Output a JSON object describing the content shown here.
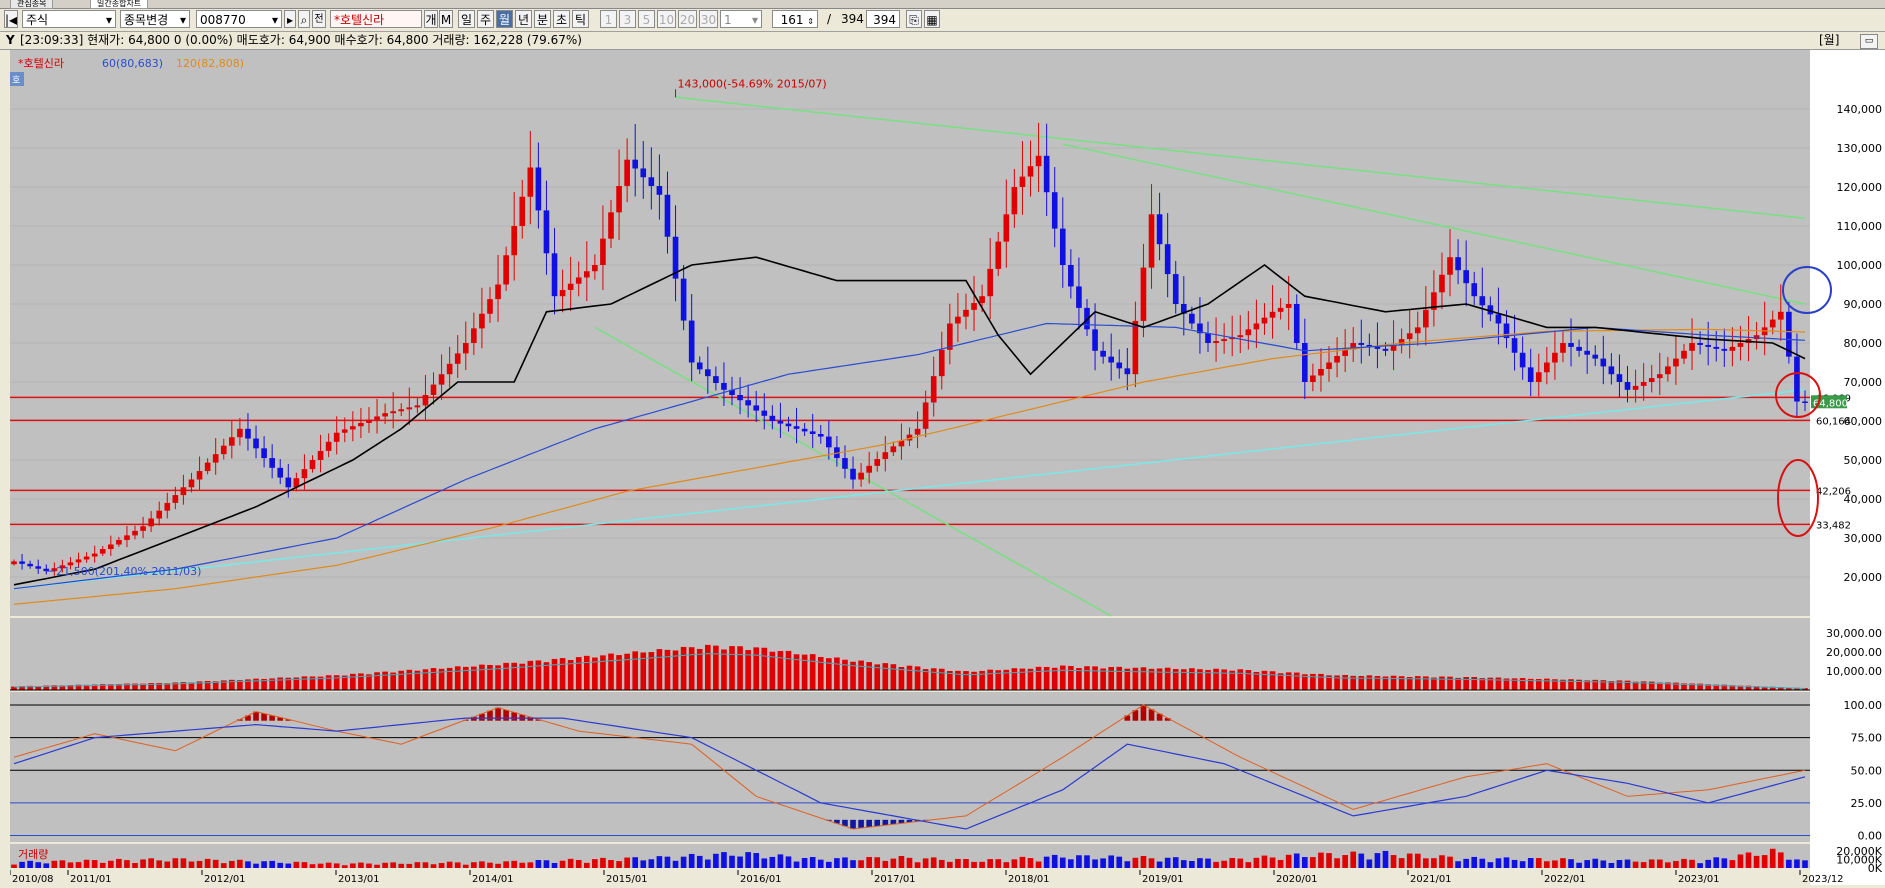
{
  "tabs": [
    "관심종목",
    "일간종합차트"
  ],
  "toolbar": {
    "market": "주식",
    "change_label": "종목변경",
    "code": "008770",
    "name": "*호텔신라",
    "periods": [
      "일",
      "주",
      "월",
      "년",
      "분",
      "초",
      "틱"
    ],
    "active_period": "월",
    "multipliers": [
      "1",
      "3",
      "5",
      "10",
      "20",
      "30"
    ],
    "count_value": "161",
    "total": "394",
    "total2": "394",
    "ge_label": "개",
    "m_label": "M",
    "jeon_label": "전",
    "slash": "/"
  },
  "infobar": {
    "icon": "Y",
    "time": "[23:09:33]",
    "price_label": "현재가",
    "price": "64,800",
    "change": "0 (0.00%)",
    "ask_label": "매도호가",
    "ask": "64,900",
    "bid_label": "매수호가",
    "bid": "64,800",
    "volume_label": "거래량",
    "volume": "162,228 (79.67%)",
    "period_tag": "[월]"
  },
  "legend": {
    "name": "*호텔신라",
    "ma60": "60(80,683)",
    "ma120": "120(82,808)"
  },
  "panel_tag": "호",
  "annotations": {
    "high": "143,000(-54.69% 2015/07)",
    "low": "21,500(201.40% 2011/03)"
  },
  "level_labels": [
    "66,069",
    "60,164",
    "42,206",
    "33,482"
  ],
  "level_values": [
    66069,
    60164,
    42206,
    33482
  ],
  "price_tag": "64,800",
  "volume_label": "거래량",
  "chart_data": {
    "type": "candlestick",
    "x_ticks": [
      "2010/08",
      "2011/01",
      "2012/01",
      "2013/01",
      "2014/01",
      "2015/01",
      "2016/01",
      "2017/01",
      "2018/01",
      "2019/01",
      "2020/01",
      "2021/01",
      "2022/01",
      "2023/01",
      "2023/12"
    ],
    "price_axis": {
      "ylim": [
        10000,
        150000
      ],
      "ticks": [
        20000,
        30000,
        40000,
        50000,
        60000,
        70000,
        80000,
        90000,
        100000,
        110000,
        120000,
        130000,
        140000
      ],
      "labels": [
        "20,000",
        "30,000",
        "40,000",
        "50,000",
        "60,000",
        "70,000",
        "80,000",
        "90,000",
        "100,000",
        "110,000",
        "120,000",
        "130,000",
        "140,000"
      ]
    },
    "indicator1_axis": {
      "labels": [
        "10,000.00",
        "20,000.00",
        "30,000.00"
      ],
      "ticks": [
        10000,
        20000,
        30000
      ],
      "ylim": [
        0,
        38000
      ]
    },
    "indicator2_axis": {
      "labels": [
        "0.00",
        "25.00",
        "50.00",
        "75.00",
        "100.00"
      ],
      "ticks": [
        0,
        25,
        50,
        75,
        100
      ],
      "ylim": [
        -5,
        110
      ]
    },
    "volume_axis": {
      "labels": [
        "0K",
        "10,000K",
        "20,000K"
      ],
      "ticks": [
        0,
        10000,
        20000
      ],
      "ylim": [
        0,
        28000
      ]
    },
    "price_anchors": [
      [
        0,
        24000
      ],
      [
        4,
        21500
      ],
      [
        10,
        26000
      ],
      [
        16,
        33000
      ],
      [
        22,
        45000
      ],
      [
        28,
        58000
      ],
      [
        34,
        43000
      ],
      [
        40,
        57000
      ],
      [
        46,
        62000
      ],
      [
        50,
        64000
      ],
      [
        56,
        80000
      ],
      [
        60,
        95000
      ],
      [
        64,
        125000
      ],
      [
        67,
        92000
      ],
      [
        72,
        100000
      ],
      [
        76,
        127000
      ],
      [
        80,
        118000
      ],
      [
        84,
        75000
      ],
      [
        88,
        68000
      ],
      [
        94,
        60000
      ],
      [
        100,
        56000
      ],
      [
        104,
        45000
      ],
      [
        108,
        52000
      ],
      [
        112,
        58000
      ],
      [
        116,
        85000
      ],
      [
        120,
        92000
      ],
      [
        124,
        120000
      ],
      [
        127,
        128000
      ],
      [
        130,
        100000
      ],
      [
        134,
        78000
      ],
      [
        138,
        72000
      ],
      [
        141,
        113000
      ],
      [
        144,
        90000
      ],
      [
        148,
        80000
      ],
      [
        152,
        82000
      ],
      [
        156,
        88000
      ],
      [
        158,
        90000
      ],
      [
        160,
        70000
      ],
      [
        163,
        75000
      ],
      [
        166,
        80000
      ],
      [
        170,
        78000
      ],
      [
        174,
        84000
      ],
      [
        178,
        102000
      ],
      [
        181,
        92000
      ],
      [
        184,
        85000
      ],
      [
        188,
        70000
      ],
      [
        192,
        80000
      ],
      [
        196,
        76000
      ],
      [
        200,
        68000
      ],
      [
        204,
        72000
      ],
      [
        208,
        80000
      ],
      [
        212,
        78000
      ],
      [
        216,
        82000
      ],
      [
        219,
        88000
      ],
      [
        221,
        65000
      ],
      [
        222,
        64800
      ]
    ],
    "ma60_anchors": [
      [
        0,
        17000
      ],
      [
        20,
        22000
      ],
      [
        40,
        30000
      ],
      [
        56,
        45000
      ],
      [
        72,
        58000
      ],
      [
        84,
        65000
      ],
      [
        96,
        72000
      ],
      [
        112,
        77000
      ],
      [
        128,
        85000
      ],
      [
        144,
        84000
      ],
      [
        160,
        78000
      ],
      [
        176,
        80000
      ],
      [
        196,
        84000
      ],
      [
        210,
        82000
      ],
      [
        222,
        80683
      ]
    ],
    "ma120_anchors": [
      [
        0,
        13000
      ],
      [
        20,
        17000
      ],
      [
        40,
        23000
      ],
      [
        60,
        33000
      ],
      [
        76,
        42000
      ],
      [
        92,
        48000
      ],
      [
        108,
        54000
      ],
      [
        124,
        62000
      ],
      [
        140,
        70000
      ],
      [
        156,
        76000
      ],
      [
        172,
        80000
      ],
      [
        190,
        83000
      ],
      [
        210,
        83500
      ],
      [
        222,
        82808
      ]
    ],
    "cloud_anchors": [
      [
        0,
        18000
      ],
      [
        10,
        22000
      ],
      [
        20,
        30000
      ],
      [
        30,
        38000
      ],
      [
        42,
        50000
      ],
      [
        48,
        58000
      ],
      [
        55,
        70000
      ],
      [
        62,
        70000
      ],
      [
        66,
        88000
      ],
      [
        74,
        90000
      ],
      [
        84,
        100000
      ],
      [
        92,
        102000
      ],
      [
        102,
        96000
      ],
      [
        118,
        96000
      ],
      [
        122,
        82000
      ],
      [
        126,
        72000
      ],
      [
        129,
        78000
      ],
      [
        134,
        88000
      ],
      [
        140,
        84000
      ],
      [
        148,
        90000
      ],
      [
        155,
        100000
      ],
      [
        160,
        92000
      ],
      [
        170,
        88000
      ],
      [
        180,
        90000
      ],
      [
        190,
        84000
      ],
      [
        196,
        84000
      ],
      [
        210,
        81000
      ],
      [
        218,
        80000
      ],
      [
        222,
        76000
      ]
    ],
    "trendlines": [
      {
        "color": "#77e080",
        "from": [
          82,
          143000
        ],
        "to": [
          222,
          112000
        ]
      },
      {
        "color": "#77e080",
        "from": [
          130,
          131000
        ],
        "to": [
          222,
          90000
        ]
      },
      {
        "color": "#77e080",
        "from": [
          72,
          84000
        ],
        "to": [
          136,
          10000
        ]
      },
      {
        "color": "#7be8e8",
        "from": [
          0,
          17000
        ],
        "to": [
          222,
          68000
        ]
      }
    ],
    "indicator1_anchors": [
      [
        0,
        2000
      ],
      [
        20,
        4000
      ],
      [
        40,
        8000
      ],
      [
        60,
        14000
      ],
      [
        76,
        20000
      ],
      [
        86,
        24000
      ],
      [
        92,
        23000
      ],
      [
        104,
        16000
      ],
      [
        118,
        10000
      ],
      [
        130,
        13000
      ],
      [
        140,
        12000
      ],
      [
        152,
        11000
      ],
      [
        164,
        8000
      ],
      [
        180,
        7000
      ],
      [
        200,
        5000
      ],
      [
        222,
        1000
      ]
    ],
    "indicator2a_anchors": [
      [
        0,
        60
      ],
      [
        10,
        78
      ],
      [
        20,
        65
      ],
      [
        30,
        95
      ],
      [
        40,
        80
      ],
      [
        48,
        70
      ],
      [
        60,
        98
      ],
      [
        70,
        80
      ],
      [
        84,
        70
      ],
      [
        92,
        30
      ],
      [
        104,
        5
      ],
      [
        118,
        15
      ],
      [
        130,
        60
      ],
      [
        140,
        100
      ],
      [
        152,
        60
      ],
      [
        166,
        20
      ],
      [
        180,
        45
      ],
      [
        190,
        55
      ],
      [
        200,
        30
      ],
      [
        210,
        35
      ],
      [
        222,
        50
      ]
    ],
    "indicator2b_anchors": [
      [
        0,
        55
      ],
      [
        10,
        75
      ],
      [
        20,
        80
      ],
      [
        30,
        85
      ],
      [
        40,
        80
      ],
      [
        56,
        90
      ],
      [
        68,
        90
      ],
      [
        84,
        75
      ],
      [
        100,
        25
      ],
      [
        118,
        5
      ],
      [
        130,
        35
      ],
      [
        138,
        70
      ],
      [
        150,
        55
      ],
      [
        166,
        15
      ],
      [
        180,
        30
      ],
      [
        190,
        50
      ],
      [
        200,
        40
      ],
      [
        210,
        25
      ],
      [
        222,
        45
      ]
    ],
    "volume_anchors": [
      [
        0,
        8000
      ],
      [
        20,
        12000
      ],
      [
        40,
        6000
      ],
      [
        60,
        8000
      ],
      [
        80,
        14000
      ],
      [
        90,
        20000
      ],
      [
        100,
        12000
      ],
      [
        110,
        14000
      ],
      [
        120,
        10000
      ],
      [
        130,
        16000
      ],
      [
        140,
        14000
      ],
      [
        150,
        11000
      ],
      [
        160,
        18000
      ],
      [
        170,
        20000
      ],
      [
        180,
        13000
      ],
      [
        190,
        12000
      ],
      [
        200,
        10000
      ],
      [
        210,
        11000
      ],
      [
        218,
        23000
      ],
      [
        222,
        9000
      ]
    ]
  }
}
